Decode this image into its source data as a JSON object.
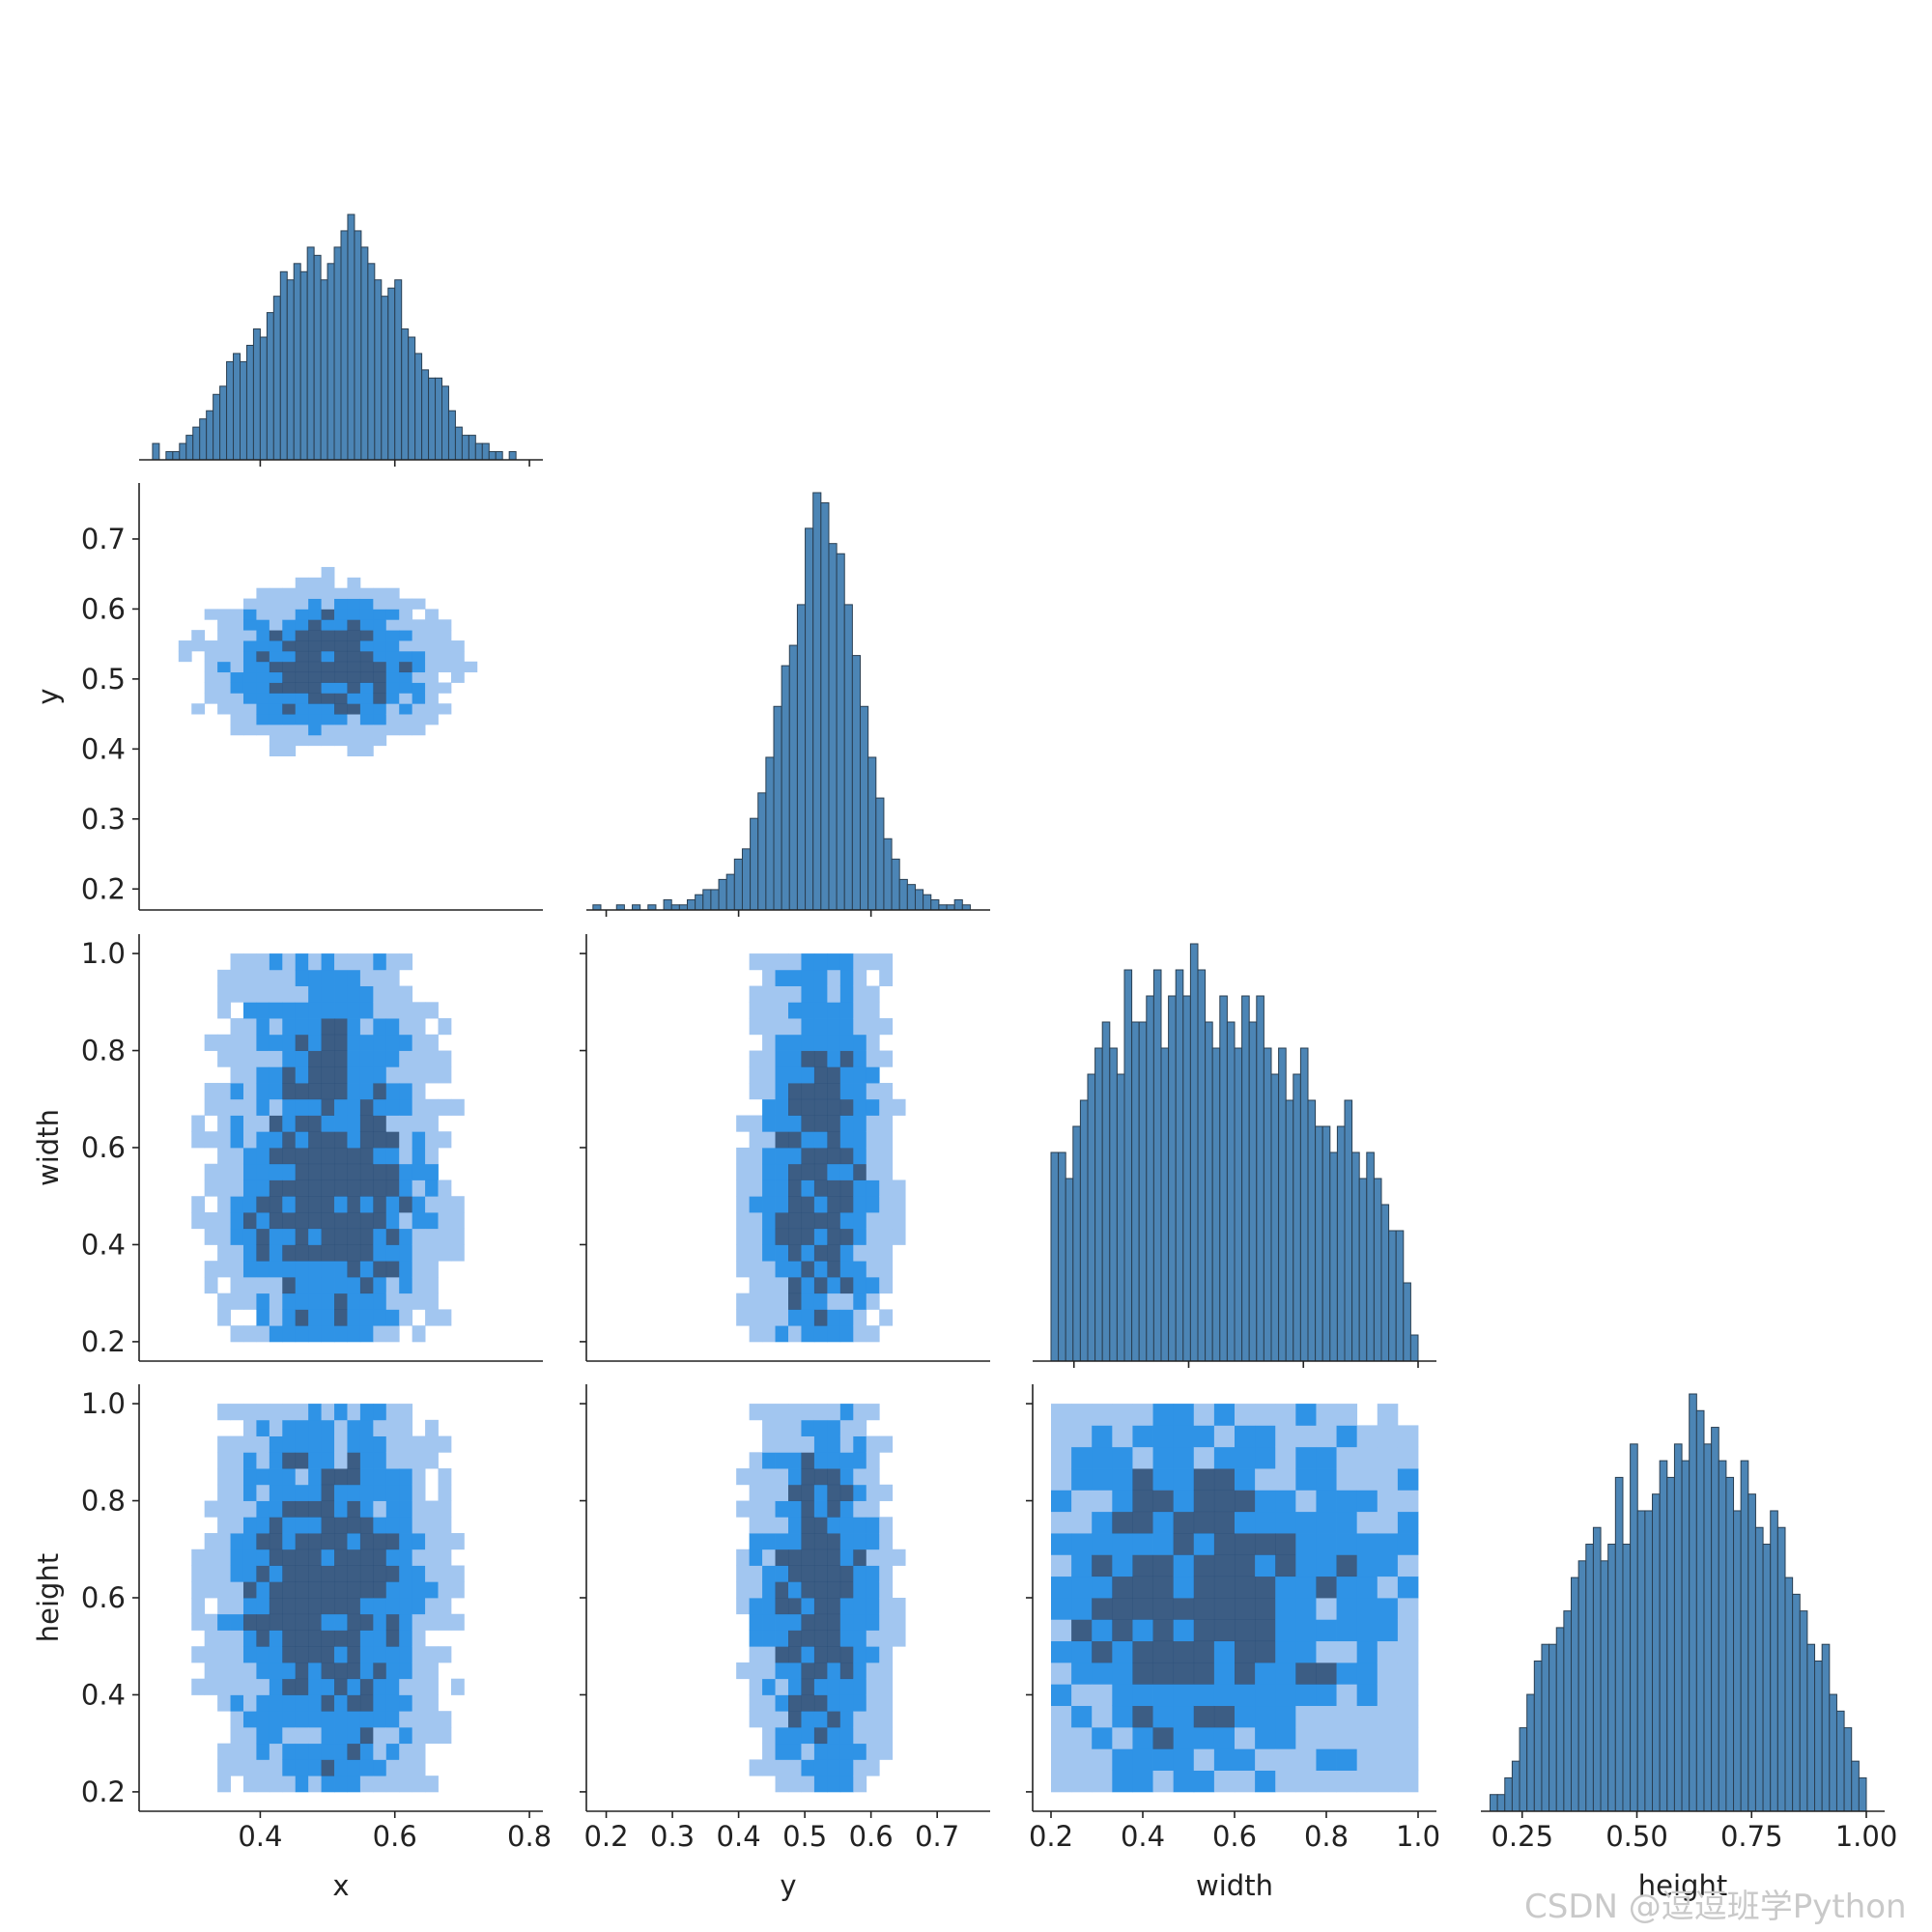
{
  "watermark": "CSDN @逗逗班学Python",
  "colors": {
    "hist_bar": "#4c85b5",
    "hist_edge": "#2a3f52",
    "heat_low": "#a2c6f0",
    "heat_mid": "#2f93e6",
    "heat_high": "#2b4f7a",
    "axis": "#222222"
  },
  "chart_data": {
    "type": "pairplot",
    "variables": [
      "x",
      "y",
      "width",
      "height"
    ],
    "layout": "corner",
    "diagonal": "histogram",
    "off_diagonal": "2d histogram",
    "grid": false,
    "axes": {
      "x": {
        "label": "x",
        "lim": [
          0.22,
          0.82
        ],
        "ticks": [
          0.4,
          0.6,
          0.8
        ],
        "tick_labels": [
          "0.4",
          "0.6",
          "0.8"
        ]
      },
      "y": {
        "label": "y",
        "lim": [
          0.17,
          0.78
        ],
        "ticks": [
          0.2,
          0.3,
          0.4,
          0.5,
          0.6,
          0.7
        ],
        "tick_labels": [
          "0.2",
          "0.3",
          "0.4",
          "0.5",
          "0.6",
          "0.7"
        ],
        "diag_ticks": [
          0.2,
          0.4,
          0.6
        ],
        "diag_tick_labels": [
          "0.2",
          "0.4",
          "0.6"
        ]
      },
      "width": {
        "label": "width",
        "lim": [
          0.16,
          1.04
        ],
        "ticks": [
          0.2,
          0.4,
          0.6,
          0.8,
          1.0
        ],
        "tick_labels": [
          "0.2",
          "0.4",
          "0.6",
          "0.8",
          "1.0"
        ],
        "diag_ticks": [
          0.25,
          0.5,
          0.75,
          1.0
        ],
        "diag_tick_labels": [
          "0.25",
          "0.50",
          "0.75",
          "1.00"
        ]
      },
      "height": {
        "label": "height",
        "lim": [
          0.16,
          1.04
        ],
        "ticks": [
          0.2,
          0.4,
          0.6,
          0.8,
          1.0
        ],
        "tick_labels": [
          "0.2",
          "0.4",
          "0.6",
          "0.8",
          "1.0"
        ],
        "diag_ticks": [
          0.25,
          0.5,
          0.75,
          1.0
        ],
        "diag_tick_labels": [
          "0.25",
          "0.50",
          "0.75",
          "1.00"
        ]
      }
    },
    "histograms": [
      {
        "variable": "x",
        "range": [
          0.24,
          0.78
        ],
        "counts": [
          2,
          0,
          1,
          1,
          2,
          3,
          4,
          5,
          6,
          8,
          9,
          12,
          13,
          12,
          14,
          16,
          15,
          18,
          20,
          23,
          22,
          24,
          23,
          26,
          25,
          22,
          24,
          26,
          28,
          30,
          28,
          26,
          24,
          22,
          20,
          21,
          22,
          16,
          15,
          13,
          11,
          10,
          10,
          9,
          6,
          4,
          3,
          3,
          2,
          2,
          1,
          1,
          0,
          1
        ]
      },
      {
        "variable": "y",
        "range": [
          0.18,
          0.75
        ],
        "counts": [
          1,
          0,
          0,
          1,
          0,
          1,
          0,
          1,
          0,
          2,
          1,
          1,
          2,
          3,
          4,
          4,
          6,
          7,
          10,
          12,
          18,
          23,
          30,
          40,
          48,
          52,
          60,
          75,
          82,
          80,
          72,
          70,
          60,
          50,
          40,
          30,
          22,
          14,
          10,
          6,
          5,
          4,
          3,
          2,
          1,
          1,
          2,
          1
        ]
      },
      {
        "variable": "width",
        "range": [
          0.2,
          1.0
        ],
        "counts": [
          8,
          8,
          7,
          9,
          10,
          11,
          12,
          13,
          12,
          11,
          15,
          13,
          13,
          14,
          15,
          12,
          14,
          15,
          14,
          16,
          15,
          13,
          12,
          14,
          13,
          12,
          14,
          13,
          14,
          12,
          11,
          12,
          10,
          11,
          12,
          10,
          9,
          9,
          8,
          9,
          10,
          8,
          7,
          8,
          7,
          6,
          5,
          5,
          3,
          1
        ]
      },
      {
        "variable": "height",
        "range": [
          0.18,
          1.0
        ],
        "counts": [
          1,
          1,
          2,
          3,
          5,
          7,
          9,
          10,
          10,
          11,
          12,
          14,
          15,
          16,
          17,
          15,
          16,
          20,
          16,
          22,
          18,
          18,
          19,
          21,
          20,
          22,
          21,
          25,
          24,
          22,
          23,
          21,
          20,
          18,
          21,
          19,
          17,
          16,
          18,
          17,
          14,
          13,
          12,
          10,
          9,
          10,
          7,
          6,
          5,
          3,
          2
        ]
      }
    ]
  }
}
